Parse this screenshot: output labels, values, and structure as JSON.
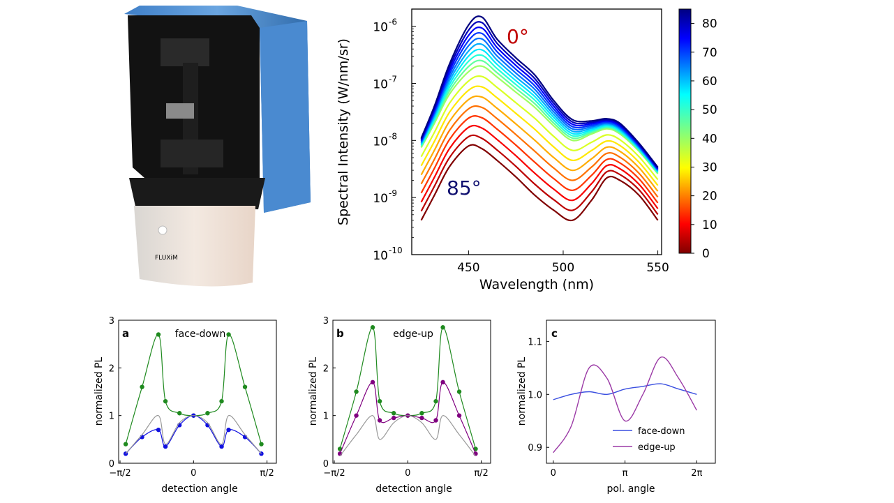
{
  "photo": {
    "logo_text": "FLUXiM"
  },
  "main_chart": {
    "xlabel": "Wavelength (nm)",
    "ylabel": "Spectral Intensity (W/nm/sr)",
    "x_ticks": [
      "450",
      "500",
      "550"
    ],
    "y_ticks": [
      "10",
      "10",
      "10",
      "10",
      "10"
    ],
    "y_exponents": [
      "-10",
      "-9",
      "-8",
      "-7",
      "-6"
    ],
    "annot_top": "0°",
    "annot_bottom": "85°",
    "colorbar_ticks": [
      "0",
      "10",
      "20",
      "30",
      "40",
      "50",
      "60",
      "70",
      "80"
    ]
  },
  "chart_data": [
    {
      "type": "line",
      "title": "",
      "xlabel": "Wavelength (nm)",
      "ylabel": "Spectral Intensity (W/nm/sr)",
      "xlim": [
        420,
        552
      ],
      "ylim": [
        1e-10,
        2e-06
      ],
      "yscale": "log",
      "colorbar": {
        "label": "",
        "range": [
          0,
          85
        ],
        "ticks": [
          0,
          10,
          20,
          30,
          40,
          50,
          60,
          70,
          80
        ],
        "colormap": "jet"
      },
      "annotations": [
        "0°",
        "85°"
      ],
      "x": [
        425,
        432,
        440,
        450,
        457,
        465,
        475,
        485,
        495,
        505,
        515,
        523,
        530,
        540,
        550
      ],
      "angles": [
        0,
        5,
        10,
        15,
        20,
        25,
        30,
        35,
        40,
        45,
        50,
        55,
        60,
        65,
        70,
        75,
        80,
        85
      ],
      "series": [
        {
          "angle": 0,
          "values": [
            1.1e-08,
            4e-08,
            2.2e-07,
            1.05e-06,
            1.45e-06,
            6e-07,
            2.8e-07,
            1.4e-07,
            5e-08,
            2.3e-08,
            2.2e-08,
            2.4e-08,
            2e-08,
            9e-09,
            3.4e-09
          ]
        },
        {
          "angle": 45,
          "values": [
            7.5e-09,
            2e-08,
            6.5e-08,
            1.6e-07,
            2e-07,
            1.3e-07,
            7e-08,
            3.8e-08,
            1.8e-08,
            1e-08,
            1.3e-08,
            1.6e-08,
            1.3e-08,
            6.5e-09,
            2.6e-09
          ]
        },
        {
          "angle": 85,
          "values": [
            4e-10,
            1.1e-09,
            3.5e-09,
            8e-09,
            7.2e-09,
            4.5e-09,
            2.3e-09,
            1.1e-09,
            6e-10,
            4e-10,
            9e-10,
            2.2e-09,
            2e-09,
            1.1e-09,
            4e-10
          ]
        }
      ]
    },
    {
      "type": "line",
      "panel": "a",
      "title": "face-down",
      "xlabel": "detection angle",
      "ylabel": "normalized PL",
      "ylim": [
        0,
        3
      ],
      "x_tick_labels": [
        "−π/2",
        "0",
        "π/2"
      ],
      "y_tick_labels": [
        "0",
        "1",
        "2",
        "3"
      ],
      "x": [
        -1.45,
        -1.1,
        -0.75,
        -0.6,
        -0.3,
        0,
        0.3,
        0.6,
        0.75,
        1.1,
        1.45
      ],
      "series": [
        {
          "color": "#1f8a1f",
          "values": [
            0.4,
            1.6,
            2.7,
            1.3,
            1.05,
            1.0,
            1.05,
            1.3,
            2.7,
            1.6,
            0.4
          ]
        },
        {
          "color": "#1010e0",
          "values": [
            0.2,
            0.55,
            0.7,
            0.35,
            0.8,
            1.0,
            0.8,
            0.35,
            0.7,
            0.55,
            0.2
          ]
        },
        {
          "color": "#999999",
          "values": [
            0.2,
            0.6,
            1.0,
            0.4,
            0.85,
            1.0,
            0.85,
            0.4,
            1.0,
            0.6,
            0.2
          ]
        }
      ]
    },
    {
      "type": "line",
      "panel": "b",
      "title": "edge-up",
      "xlabel": "detection angle",
      "ylabel": "normalized PL",
      "ylim": [
        0,
        3
      ],
      "x_tick_labels": [
        "−π/2",
        "0",
        "π/2"
      ],
      "y_tick_labels": [
        "0",
        "1",
        "2",
        "3"
      ],
      "x": [
        -1.45,
        -1.1,
        -0.75,
        -0.6,
        -0.3,
        0,
        0.3,
        0.6,
        0.75,
        1.1,
        1.45
      ],
      "series": [
        {
          "color": "#1f8a1f",
          "values": [
            0.3,
            1.5,
            2.85,
            1.3,
            1.05,
            1.0,
            1.05,
            1.3,
            2.85,
            1.5,
            0.3
          ]
        },
        {
          "color": "#800080",
          "values": [
            0.2,
            1.0,
            1.7,
            0.9,
            0.95,
            1.0,
            0.95,
            0.9,
            1.7,
            1.0,
            0.2
          ]
        },
        {
          "color": "#999999",
          "values": [
            0.15,
            0.6,
            1.0,
            0.5,
            0.85,
            1.0,
            0.85,
            0.5,
            1.0,
            0.6,
            0.15
          ]
        }
      ]
    },
    {
      "type": "line",
      "panel": "c",
      "title": "",
      "xlabel": "pol. angle",
      "ylabel": "normalized PL",
      "ylim": [
        0.87,
        1.14
      ],
      "x_tick_labels": [
        "0",
        "π",
        "2π"
      ],
      "y_tick_labels": [
        "0.9",
        "1.0",
        "1.1"
      ],
      "legend": {
        "position": "bottom-right",
        "entries": [
          "face-down",
          "edge-up"
        ]
      },
      "x": [
        0,
        0.785,
        1.571,
        2.356,
        3.142,
        3.927,
        4.712,
        5.498,
        6.283
      ],
      "series": [
        {
          "name": "face-down",
          "color": "#3a4fe0",
          "values": [
            0.99,
            1.0,
            1.005,
            1.0,
            1.01,
            1.015,
            1.02,
            1.01,
            1.0
          ]
        },
        {
          "name": "edge-up",
          "color": "#9b3aa6",
          "values": [
            0.89,
            0.94,
            1.05,
            1.03,
            0.95,
            1.0,
            1.07,
            1.03,
            0.97
          ]
        }
      ]
    }
  ],
  "panel_a": {
    "letter": "a",
    "title": "face-down",
    "xlabel": "detection angle",
    "ylabel": "normalized PL",
    "x_ticks": [
      "−π/2",
      "0",
      "π/2"
    ],
    "y_ticks": [
      "0",
      "1",
      "2",
      "3"
    ]
  },
  "panel_b": {
    "letter": "b",
    "title": "edge-up",
    "xlabel": "detection angle",
    "ylabel": "normalized PL",
    "x_ticks": [
      "−π/2",
      "0",
      "π/2"
    ],
    "y_ticks": [
      "0",
      "1",
      "2",
      "3"
    ]
  },
  "panel_c": {
    "letter": "c",
    "xlabel": "pol. angle",
    "ylabel": "normalized PL",
    "x_ticks": [
      "0",
      "π",
      "2π"
    ],
    "y_ticks": [
      "0.9",
      "1.0",
      "1.1"
    ],
    "legend": [
      "face-down",
      "edge-up"
    ]
  }
}
